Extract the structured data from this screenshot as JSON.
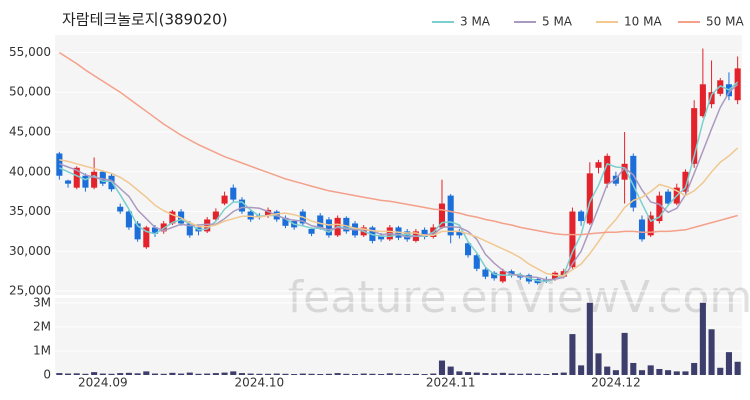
{
  "chart_data": {
    "type": "candlestick",
    "title": "자람테크놀로지(389020)",
    "watermark": "feature.enViewV.com",
    "categories": [
      null,
      null,
      null,
      null,
      null,
      "2024.09",
      null,
      null,
      null,
      null,
      null,
      null,
      null,
      null,
      null,
      null,
      null,
      null,
      null,
      null,
      null,
      null,
      null,
      "2024.10",
      null,
      null,
      null,
      null,
      null,
      null,
      null,
      null,
      null,
      null,
      null,
      null,
      null,
      null,
      null,
      null,
      null,
      null,
      null,
      null,
      null,
      "2024.11",
      null,
      null,
      null,
      null,
      null,
      null,
      null,
      null,
      null,
      null,
      null,
      null,
      null,
      null,
      null,
      null,
      null,
      null,
      "2024.12",
      null,
      null,
      null,
      null,
      null,
      null,
      null,
      null,
      null,
      null,
      null,
      null,
      null,
      null
    ],
    "open": [
      42300,
      38900,
      38000,
      39500,
      38000,
      40000,
      39500,
      35600,
      35000,
      33500,
      30500,
      33000,
      32500,
      33500,
      35000,
      33500,
      33000,
      32500,
      34000,
      36000,
      38000,
      36500,
      35000,
      34500,
      34500,
      35000,
      34200,
      33800,
      35000,
      32800,
      34500,
      34000,
      32000,
      34200,
      33500,
      32000,
      33000,
      32000,
      31500,
      33000,
      32500,
      31300,
      32700,
      31800,
      33000,
      37000,
      32500,
      31000,
      29500,
      27700,
      27300,
      26200,
      27500,
      27000,
      27000,
      26500,
      26500,
      26500,
      26800,
      28000,
      35000,
      33500,
      40500,
      38500,
      39500,
      39000,
      42000,
      34000,
      32000,
      33800,
      37500,
      36000,
      37500,
      41000,
      47000,
      48500,
      49800,
      51000,
      49000
    ],
    "high": [
      42500,
      39000,
      40700,
      39800,
      41800,
      40200,
      39800,
      36000,
      35200,
      33800,
      33200,
      33300,
      33800,
      35200,
      35300,
      33800,
      33200,
      34300,
      35400,
      37500,
      38400,
      36800,
      35300,
      34800,
      35500,
      35200,
      34500,
      34000,
      35300,
      33000,
      34800,
      34300,
      34500,
      34400,
      33800,
      33300,
      33200,
      32300,
      33300,
      33200,
      32800,
      32800,
      33000,
      33400,
      39000,
      37200,
      32800,
      31200,
      29700,
      28000,
      27500,
      27800,
      27700,
      27300,
      27200,
      26700,
      26800,
      27500,
      27800,
      35500,
      35200,
      41200,
      41500,
      42300,
      40000,
      45000,
      42300,
      34500,
      35000,
      37500,
      37800,
      38500,
      40300,
      49000,
      55500,
      54000,
      51800,
      52500,
      54500
    ],
    "low": [
      39000,
      38000,
      37800,
      37500,
      37800,
      38200,
      37500,
      34700,
      32700,
      31200,
      30300,
      31800,
      32200,
      33300,
      33200,
      31700,
      32000,
      32300,
      33800,
      35800,
      36200,
      34700,
      33700,
      34000,
      34200,
      33700,
      32900,
      32700,
      33200,
      31900,
      32700,
      31700,
      31800,
      32200,
      31700,
      31800,
      31000,
      31200,
      31300,
      31400,
      31200,
      31100,
      31500,
      31600,
      32800,
      31000,
      31600,
      29200,
      27500,
      26500,
      26300,
      26000,
      26700,
      26400,
      25900,
      25800,
      26000,
      26300,
      26600,
      27800,
      33200,
      33300,
      39800,
      38000,
      38200,
      36000,
      35000,
      31200,
      31800,
      33500,
      35700,
      35800,
      37200,
      40500,
      46800,
      48000,
      49500,
      49000,
      48500
    ],
    "close": [
      39500,
      38500,
      40500,
      38000,
      40000,
      38500,
      37800,
      35000,
      33000,
      31500,
      33000,
      32200,
      33500,
      35000,
      33500,
      32000,
      32500,
      34000,
      35000,
      37000,
      36500,
      35000,
      34000,
      34300,
      35200,
      34000,
      33200,
      33000,
      33500,
      32200,
      33000,
      32000,
      34200,
      32500,
      32000,
      33000,
      31300,
      31500,
      33000,
      31700,
      31500,
      32500,
      31800,
      33000,
      36000,
      32000,
      32000,
      29500,
      27800,
      26800,
      26600,
      27500,
      27000,
      26700,
      26200,
      26000,
      26300,
      27300,
      27500,
      35000,
      33800,
      39800,
      41200,
      42000,
      38500,
      41000,
      35500,
      31500,
      34500,
      37000,
      36000,
      38000,
      40000,
      48000,
      51000,
      50000,
      51500,
      49500,
      53000
    ],
    "up_color": "#e3222b",
    "down_color": "#1c6fd8",
    "series": [
      {
        "name": "3 MA",
        "color": "#7ccfcf",
        "values": [
          40500,
          40000,
          39500,
          39000,
          39500,
          38800,
          38800,
          37100,
          35300,
          33200,
          32500,
          32200,
          32900,
          33600,
          34000,
          33500,
          32700,
          32800,
          33800,
          35300,
          36200,
          36200,
          35200,
          34400,
          34500,
          34500,
          34100,
          33400,
          33200,
          32900,
          32900,
          32400,
          33100,
          32900,
          32900,
          32500,
          32100,
          31900,
          31900,
          32100,
          32100,
          31900,
          31900,
          32400,
          33600,
          33700,
          33300,
          31200,
          29800,
          28000,
          27100,
          27000,
          27000,
          27100,
          26600,
          26300,
          26200,
          26500,
          27000,
          29900,
          32100,
          36200,
          38300,
          41000,
          40600,
          40500,
          38300,
          36000,
          33800,
          34300,
          35800,
          37000,
          38000,
          42000,
          46300,
          49700,
          50800,
          50300,
          51300
        ]
      },
      {
        "name": "5 MA",
        "color": "#ab9ac0",
        "values": [
          41000,
          40600,
          40200,
          39600,
          39300,
          39100,
          38900,
          37900,
          36900,
          35200,
          34100,
          33000,
          32600,
          33000,
          33400,
          33200,
          33300,
          33400,
          33400,
          34100,
          35000,
          35500,
          35500,
          35400,
          35000,
          34500,
          34100,
          33900,
          33800,
          33200,
          33000,
          32700,
          33000,
          32800,
          32700,
          32700,
          32600,
          32100,
          32200,
          32100,
          31800,
          31900,
          32100,
          32100,
          33000,
          33100,
          33000,
          32500,
          31500,
          29600,
          28500,
          27600,
          27100,
          26900,
          26800,
          26700,
          26400,
          26500,
          26700,
          28400,
          30000,
          32700,
          35500,
          38400,
          39100,
          40500,
          39600,
          37700,
          36200,
          35900,
          34900,
          35400,
          37100,
          39800,
          42600,
          45400,
          48100,
          50000,
          51000
        ]
      },
      {
        "name": "10 MA",
        "color": "#f0c890",
        "values": [
          41500,
          41300,
          41000,
          40700,
          40400,
          40100,
          39800,
          39300,
          38600,
          37700,
          36800,
          35800,
          35100,
          34600,
          34200,
          33600,
          33100,
          33100,
          33300,
          33800,
          34100,
          34400,
          34400,
          34300,
          34500,
          34700,
          34800,
          34600,
          34300,
          33800,
          33500,
          33300,
          33400,
          33200,
          32900,
          32800,
          32600,
          32500,
          32500,
          32400,
          32300,
          32300,
          32000,
          32000,
          32500,
          32500,
          32500,
          32200,
          31800,
          31300,
          30800,
          30300,
          29800,
          29200,
          28400,
          27800,
          27200,
          27000,
          26900,
          27700,
          28400,
          29700,
          31200,
          32800,
          34000,
          35500,
          36400,
          36800,
          37500,
          38400,
          38100,
          37600,
          37000,
          37600,
          38600,
          40000,
          41200,
          42000,
          43000
        ]
      },
      {
        "name": "50 MA",
        "color": "#f4a08a",
        "values": [
          55000,
          54300,
          53600,
          52800,
          52100,
          51400,
          50700,
          50000,
          49200,
          48400,
          47600,
          46800,
          46000,
          45300,
          44600,
          44000,
          43400,
          42900,
          42400,
          41900,
          41500,
          41100,
          40700,
          40300,
          39900,
          39500,
          39100,
          38800,
          38500,
          38200,
          37900,
          37600,
          37400,
          37200,
          37000,
          36800,
          36600,
          36400,
          36300,
          36100,
          35900,
          35700,
          35500,
          35300,
          35200,
          35000,
          34800,
          34500,
          34300,
          34000,
          33800,
          33500,
          33300,
          33000,
          32800,
          32600,
          32400,
          32200,
          32100,
          32100,
          32100,
          32200,
          32300,
          32400,
          32400,
          32500,
          32500,
          32400,
          32400,
          32500,
          32500,
          32600,
          32700,
          33000,
          33300,
          33600,
          33900,
          34200,
          34500
        ]
      }
    ],
    "ylim": [
      24500,
      57200
    ],
    "yticks": [
      {
        "value": 25000,
        "label": "25,000"
      },
      {
        "value": 30000,
        "label": "30,000"
      },
      {
        "value": 35000,
        "label": "35,000"
      },
      {
        "value": 40000,
        "label": "40,000"
      },
      {
        "value": 45000,
        "label": "45,000"
      },
      {
        "value": 50000,
        "label": "50,000"
      },
      {
        "value": 55000,
        "label": "55,000"
      }
    ],
    "grid": true,
    "volume": {
      "color": "#3e3e6c",
      "values": [
        80000,
        60000,
        70000,
        50000,
        120000,
        60000,
        50000,
        80000,
        90000,
        70000,
        150000,
        60000,
        50000,
        90000,
        60000,
        100000,
        50000,
        60000,
        80000,
        100000,
        150000,
        80000,
        60000,
        50000,
        50000,
        60000,
        50000,
        40000,
        60000,
        50000,
        40000,
        50000,
        80000,
        50000,
        40000,
        60000,
        50000,
        40000,
        70000,
        50000,
        40000,
        50000,
        40000,
        60000,
        600000,
        350000,
        150000,
        120000,
        100000,
        80000,
        70000,
        90000,
        60000,
        50000,
        60000,
        50000,
        40000,
        80000,
        100000,
        1700000,
        400000,
        3000000,
        900000,
        350000,
        200000,
        1750000,
        500000,
        200000,
        400000,
        250000,
        200000,
        150000,
        150000,
        500000,
        3000000,
        1900000,
        300000,
        950000,
        550000
      ],
      "ylim": [
        0,
        3200000
      ],
      "yticks": [
        0,
        {
          "value": 1000000,
          "label": "1M"
        },
        {
          "value": 2000000,
          "label": "2M"
        },
        {
          "value": 3000000,
          "label": "3M"
        }
      ]
    }
  }
}
